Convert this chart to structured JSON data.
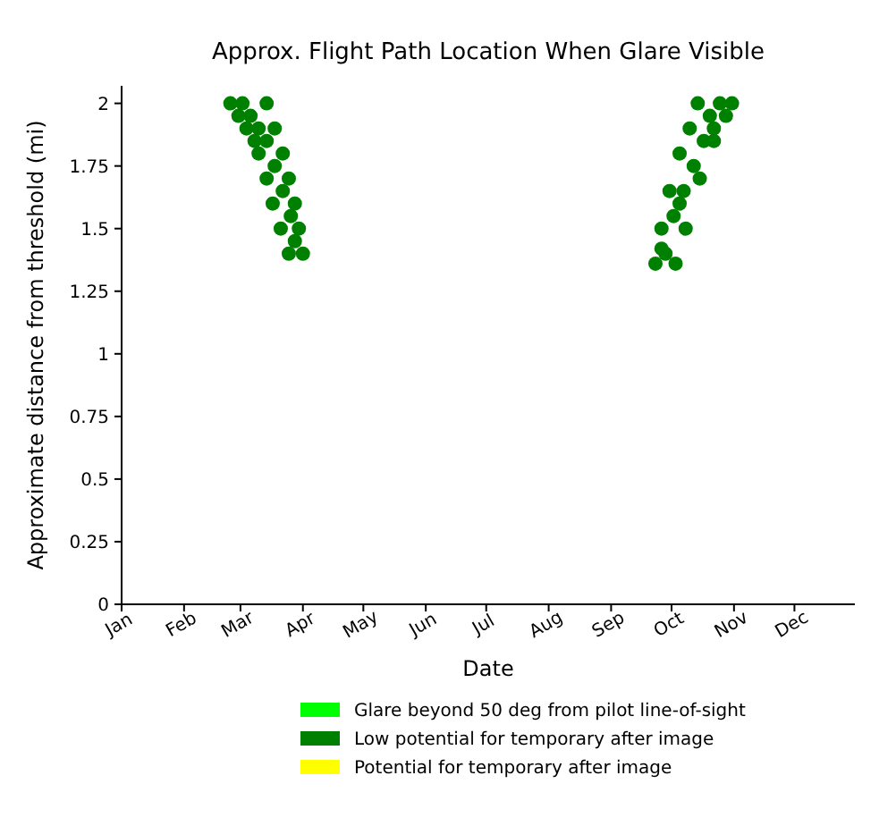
{
  "chart_data": {
    "type": "scatter",
    "title": "Approx. Flight Path Location When Glare Visible",
    "xlabel": "Date",
    "ylabel": "Approximate distance from threshold (mi)",
    "xlim": [
      "--01-01",
      "--12-31"
    ],
    "ylim": [
      0,
      2.07
    ],
    "xticks": [
      {
        "value": "--01-01",
        "label": "Jan"
      },
      {
        "value": "--02-01",
        "label": "Feb"
      },
      {
        "value": "--03-01",
        "label": "Mar"
      },
      {
        "value": "--04-01",
        "label": "Apr"
      },
      {
        "value": "--05-01",
        "label": "May"
      },
      {
        "value": "--06-01",
        "label": "Jun"
      },
      {
        "value": "--07-01",
        "label": "Jul"
      },
      {
        "value": "--08-01",
        "label": "Aug"
      },
      {
        "value": "--09-01",
        "label": "Sep"
      },
      {
        "value": "--10-01",
        "label": "Oct"
      },
      {
        "value": "--11-01",
        "label": "Nov"
      },
      {
        "value": "--12-01",
        "label": "Dec"
      }
    ],
    "yticks": [
      0,
      0.25,
      0.5,
      0.75,
      1,
      1.25,
      1.5,
      1.75,
      2
    ],
    "grid": false,
    "legend": "bottom",
    "marker": "circle",
    "series": [
      {
        "name": "Glare beyond 50 deg from pilot line-of-sight",
        "color": "#00ff00"
      },
      {
        "name": "Low potential for temporary after image",
        "color": "#008000",
        "x": [
          "--02-24",
          "--02-28",
          "--03-04",
          "--03-08",
          "--03-10",
          "--03-14",
          "--03-17",
          "--03-21",
          "--03-25",
          "--03-02",
          "--03-06",
          "--03-10",
          "--03-14",
          "--03-18",
          "--03-22",
          "--03-26",
          "--03-14",
          "--03-18",
          "--03-22",
          "--03-25",
          "--03-28",
          "--03-30",
          "--04-01",
          "--03-28",
          "--09-23",
          "--09-26",
          "--09-30",
          "--10-05",
          "--10-10",
          "--10-14",
          "--10-03",
          "--10-08",
          "--10-15",
          "--10-22",
          "--10-28",
          "--10-31",
          "--09-28",
          "--10-02",
          "--10-07",
          "--10-12",
          "--10-17",
          "--10-22",
          "--10-25",
          "--10-20",
          "--09-26",
          "--10-05"
        ],
        "values": [
          2.0,
          1.95,
          1.9,
          1.85,
          1.8,
          1.7,
          1.6,
          1.5,
          1.4,
          2.0,
          1.95,
          1.9,
          1.85,
          1.75,
          1.65,
          1.55,
          2.0,
          1.9,
          1.8,
          1.7,
          1.6,
          1.5,
          1.4,
          1.45,
          1.36,
          1.5,
          1.65,
          1.8,
          1.9,
          2.0,
          1.36,
          1.5,
          1.7,
          1.85,
          1.95,
          2.0,
          1.4,
          1.55,
          1.65,
          1.75,
          1.85,
          1.9,
          2.0,
          1.95,
          1.42,
          1.6
        ]
      },
      {
        "name": "Potential for temporary after image",
        "color": "#ffff00"
      }
    ]
  }
}
